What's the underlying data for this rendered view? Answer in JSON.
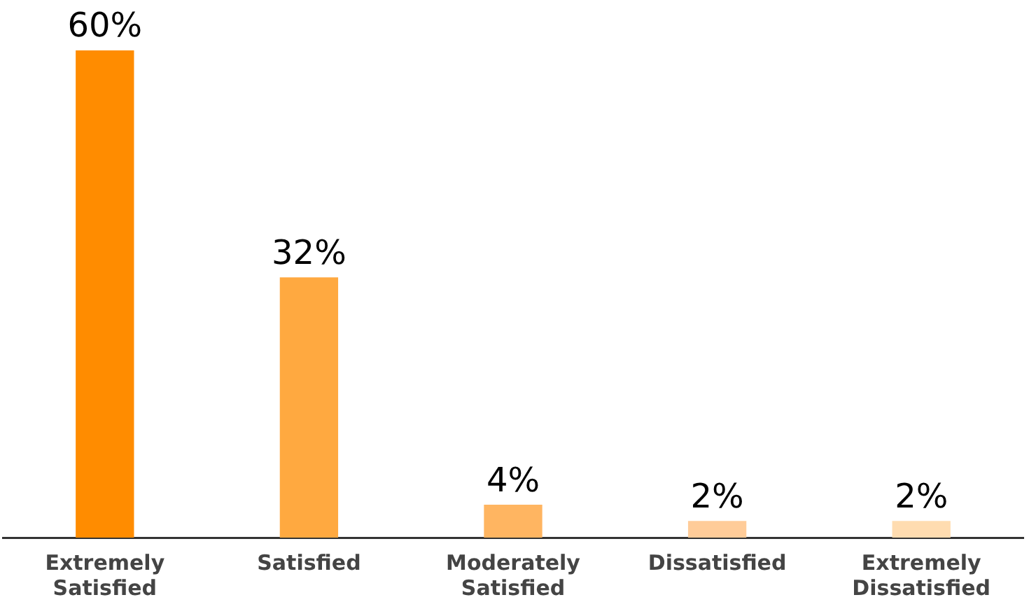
{
  "chart_data": {
    "type": "bar",
    "tick_labels": "x",
    "categories": [
      "Extremely Satisfied",
      "Satisfied",
      "Moderately Satisfied",
      "Dissatisfied",
      "Extremely Dissatisfied"
    ],
    "values": [
      60,
      32,
      4,
      2,
      2
    ],
    "value_labels": [
      "60%",
      "32%",
      "4%",
      "2%",
      "2%"
    ],
    "colors": [
      "#ff8c00",
      "#ffa940",
      "#ffb561",
      "#ffcc99",
      "#ffdcb0"
    ],
    "grid": false,
    "legend": false
  }
}
